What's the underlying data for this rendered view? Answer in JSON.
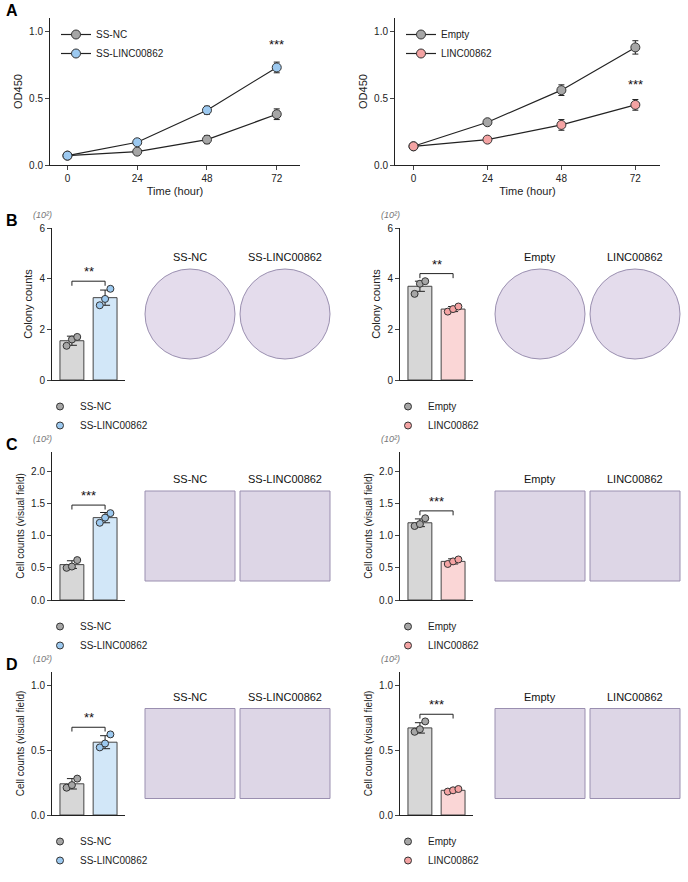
{
  "chart_data": [
    {
      "panel": "A",
      "type": "line",
      "x_label": "Time (hour)",
      "y_label": "OD450",
      "x": [
        0,
        24,
        48,
        72
      ],
      "xlim": [
        -6,
        80
      ],
      "xticks": [
        0,
        24,
        48,
        72
      ],
      "ylim": [
        0,
        1.1
      ],
      "yticks": [
        {
          "value": 0,
          "label": "0.0"
        },
        0.5,
        {
          "value": 1,
          "label": "1.0"
        }
      ],
      "marker": "circle",
      "legend": "top-left",
      "series": [
        {
          "name": "SS-NC",
          "color": "#a6a6a6",
          "values": [
            0.07,
            0.1,
            0.19,
            0.38
          ],
          "errors": [
            0.01,
            0.01,
            0.03,
            0.04
          ]
        },
        {
          "name": "SS-LINC00862",
          "color": "#9cc9f0",
          "values": [
            0.07,
            0.17,
            0.41,
            0.73
          ],
          "errors": [
            0.01,
            0.01,
            0.03,
            0.04
          ]
        }
      ],
      "annotations": [
        {
          "text": "***",
          "x": 72,
          "y": 0.83
        }
      ]
    },
    {
      "type": "line",
      "x_label": "Time (hour)",
      "y_label": "OD450",
      "x": [
        0,
        24,
        48,
        72
      ],
      "xlim": [
        -6,
        80
      ],
      "xticks": [
        0,
        24,
        48,
        72
      ],
      "ylim": [
        0,
        1.1
      ],
      "yticks": [
        {
          "value": 0,
          "label": "0.0"
        },
        0.5,
        {
          "value": 1,
          "label": "1.0"
        }
      ],
      "marker": "circle",
      "legend": "top-left",
      "series": [
        {
          "name": "Empty",
          "color": "#a6a6a6",
          "values": [
            0.14,
            0.32,
            0.56,
            0.88
          ],
          "errors": [
            0.01,
            0.02,
            0.04,
            0.05
          ]
        },
        {
          "name": "LINC00862",
          "color": "#f4a3a3",
          "values": [
            0.14,
            0.19,
            0.3,
            0.45
          ],
          "errors": [
            0.01,
            0.02,
            0.04,
            0.04
          ]
        }
      ],
      "annotations": [
        {
          "text": "***",
          "x": 72,
          "y": 0.53
        }
      ]
    },
    {
      "panel": "B",
      "type": "bar",
      "y_label": "Colony counts",
      "y_scale_note": "(10²)",
      "categories": [
        null,
        null
      ],
      "ylim": [
        0,
        6
      ],
      "yticks": [
        0,
        2,
        4,
        6
      ],
      "tick_labels": "y",
      "legend": "bottom",
      "significance": "**",
      "photo_labels": [
        "SS-NC",
        "SS-LINC00862"
      ],
      "series": [
        {
          "name": "SS-NC",
          "color": "#a6a6a6",
          "values": [
            1.55,
            null
          ],
          "errors": [
            0.18,
            null
          ],
          "points": [
            [
              1.35,
              1.6,
              1.7
            ],
            null
          ]
        },
        {
          "name": "SS-LINC00862",
          "color": "#9cc9f0",
          "values": [
            null,
            3.25
          ],
          "errors": [
            null,
            0.3
          ],
          "points": [
            null,
            [
              2.95,
              3.2,
              3.6
            ]
          ]
        }
      ]
    },
    {
      "type": "bar",
      "y_label": "Colony counts",
      "y_scale_note": "(10²)",
      "categories": [
        null,
        null
      ],
      "ylim": [
        0,
        6
      ],
      "yticks": [
        0,
        2,
        4,
        6
      ],
      "tick_labels": "y",
      "legend": "bottom",
      "significance": "**",
      "photo_labels": [
        "Empty",
        "LINC00862"
      ],
      "series": [
        {
          "name": "Empty",
          "color": "#a6a6a6",
          "values": [
            3.7,
            null
          ],
          "errors": [
            0.2,
            null
          ],
          "points": [
            [
              3.4,
              3.8,
              3.9
            ],
            null
          ]
        },
        {
          "name": "LINC00862",
          "color": "#f4a3a3",
          "values": [
            null,
            2.8
          ],
          "errors": [
            null,
            0.1
          ],
          "points": [
            null,
            [
              2.7,
              2.8,
              2.9
            ]
          ]
        }
      ]
    },
    {
      "panel": "C",
      "type": "bar",
      "y_label": "Cell counts (visual field)",
      "y_scale_note": "(10²)",
      "categories": [
        null,
        null
      ],
      "ylim": [
        0,
        2.3
      ],
      "yticks": [
        {
          "value": 0,
          "label": "0.0"
        },
        0.5,
        {
          "value": 1,
          "label": "1.0"
        },
        1.5,
        {
          "value": 2,
          "label": "2.0"
        }
      ],
      "tick_labels": "y",
      "legend": "bottom",
      "significance": "***",
      "photo_labels": [
        "SS-NC",
        "SS-LINC00862"
      ],
      "series": [
        {
          "name": "SS-NC",
          "color": "#a6a6a6",
          "values": [
            0.55,
            null
          ],
          "errors": [
            0.06,
            null
          ],
          "points": [
            [
              0.5,
              0.52,
              0.62
            ],
            null
          ]
        },
        {
          "name": "SS-LINC00862",
          "color": "#9cc9f0",
          "values": [
            null,
            1.28
          ],
          "errors": [
            null,
            0.08
          ],
          "points": [
            null,
            [
              1.2,
              1.28,
              1.35
            ]
          ]
        }
      ]
    },
    {
      "type": "bar",
      "y_label": "Cell counts (visual field)",
      "y_scale_note": "(10²)",
      "categories": [
        null,
        null
      ],
      "ylim": [
        0,
        2.3
      ],
      "yticks": [
        {
          "value": 0,
          "label": "0.0"
        },
        0.5,
        {
          "value": 1,
          "label": "1.0"
        },
        1.5,
        {
          "value": 2,
          "label": "2.0"
        }
      ],
      "tick_labels": "y",
      "legend": "bottom",
      "significance": "***",
      "photo_labels": [
        "Empty",
        "LINC00862"
      ],
      "series": [
        {
          "name": "Empty",
          "color": "#a6a6a6",
          "values": [
            1.2,
            null
          ],
          "errors": [
            0.06,
            null
          ],
          "points": [
            [
              1.15,
              1.18,
              1.27
            ],
            null
          ]
        },
        {
          "name": "LINC00862",
          "color": "#f4a3a3",
          "values": [
            null,
            0.6
          ],
          "errors": [
            null,
            0.04
          ],
          "points": [
            null,
            [
              0.56,
              0.6,
              0.63
            ]
          ]
        }
      ]
    },
    {
      "panel": "D",
      "type": "bar",
      "y_label": "Cell counts (visual field)",
      "y_scale_note": "(10²)",
      "categories": [
        null,
        null
      ],
      "ylim": [
        0,
        1.1
      ],
      "yticks": [
        {
          "value": 0,
          "label": "0.0"
        },
        0.5,
        {
          "value": 1,
          "label": "1.0"
        }
      ],
      "tick_labels": "y",
      "legend": "bottom",
      "significance": "**",
      "photo_labels": [
        "SS-NC",
        "SS-LINC00862"
      ],
      "series": [
        {
          "name": "SS-NC",
          "color": "#a6a6a6",
          "values": [
            0.24,
            null
          ],
          "errors": [
            0.04,
            null
          ],
          "points": [
            [
              0.21,
              0.23,
              0.28
            ],
            null
          ]
        },
        {
          "name": "SS-LINC00862",
          "color": "#9cc9f0",
          "values": [
            null,
            0.56
          ],
          "errors": [
            null,
            0.05
          ],
          "points": [
            null,
            [
              0.52,
              0.55,
              0.62
            ]
          ]
        }
      ]
    },
    {
      "type": "bar",
      "y_label": "Cell counts (visual field)",
      "y_scale_note": "(10²)",
      "categories": [
        null,
        null
      ],
      "ylim": [
        0,
        1.1
      ],
      "yticks": [
        {
          "value": 0,
          "label": "0.0"
        },
        0.5,
        {
          "value": 1,
          "label": "1.0"
        }
      ],
      "tick_labels": "y",
      "legend": "bottom",
      "significance": "***",
      "photo_labels": [
        "Empty",
        "LINC00862"
      ],
      "series": [
        {
          "name": "Empty",
          "color": "#a6a6a6",
          "values": [
            0.67,
            null
          ],
          "errors": [
            0.04,
            null
          ],
          "points": [
            [
              0.64,
              0.66,
              0.72
            ],
            null
          ]
        },
        {
          "name": "LINC00862",
          "color": "#f4a3a3",
          "values": [
            null,
            0.19
          ],
          "errors": [
            null,
            0.01
          ],
          "points": [
            null,
            [
              0.18,
              0.19,
              0.2
            ]
          ]
        }
      ]
    }
  ]
}
